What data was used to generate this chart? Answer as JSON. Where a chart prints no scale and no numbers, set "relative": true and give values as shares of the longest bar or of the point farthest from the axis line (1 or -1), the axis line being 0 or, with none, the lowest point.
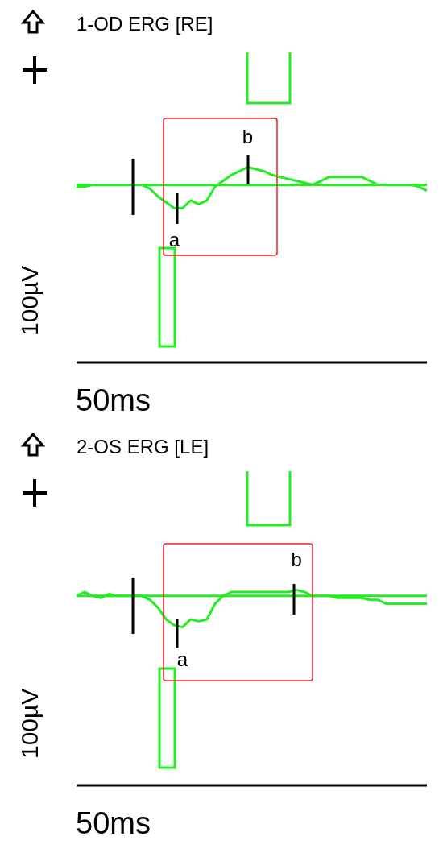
{
  "chart_data": [
    {
      "type": "line",
      "title": "1-OD ERG [RE]",
      "xlabel": "50ms",
      "ylabel": "100µV",
      "relative": true,
      "marker": "none",
      "line_style": "solid",
      "categories": [
        null,
        null,
        null,
        null,
        null,
        null,
        null,
        null,
        null,
        null,
        null,
        null,
        null,
        null,
        null,
        null,
        null,
        null,
        null,
        null,
        null,
        null,
        null,
        null,
        null,
        null,
        null,
        null,
        null,
        null,
        null,
        null,
        null,
        null,
        null,
        null,
        null,
        null,
        null,
        null,
        null,
        null,
        null,
        null
      ],
      "series": [
        {
          "color": "#22ee22",
          "values": [
            0.91,
            0.91,
            0.91,
            0.91,
            0.91,
            0.91,
            0.91,
            0.91,
            0.91,
            0.91,
            0.91,
            0.91,
            0.91,
            0.91,
            0.91,
            0.91,
            0.91,
            0.91,
            0.91,
            0.91,
            0.91,
            0.91,
            0.91,
            0.91,
            0.91,
            0.91,
            0.91,
            0.91,
            0.91,
            0.91,
            0.91,
            0.91,
            0.91,
            0.91,
            0.91,
            0.91,
            0.91,
            0.91,
            0.91,
            0.91,
            0.91,
            0.91,
            0.91,
            0.91
          ]
        },
        {
          "color": "#22ee22",
          "values": [
            0.9,
            0.9,
            0.91,
            0.91,
            0.91,
            0.91,
            0.91,
            0.91,
            0.91,
            0.89,
            0.85,
            0.82,
            0.79,
            0.79,
            0.83,
            0.81,
            0.83,
            0.9,
            0.93,
            0.96,
            0.98,
            1,
            0.99,
            0.98,
            0.96,
            0.95,
            0.94,
            0.93,
            0.92,
            0.91,
            0.93,
            0.95,
            0.95,
            0.95,
            0.95,
            0.95,
            0.93,
            0.91,
            0.91,
            0.91,
            0.91,
            0.91,
            0.9,
            0.88
          ]
        }
      ],
      "annotations": [
        "a",
        "b"
      ]
    },
    {
      "type": "line",
      "title": "2-OS ERG [LE]",
      "xlabel": "50ms",
      "ylabel": "100µV",
      "relative": true,
      "marker": "none",
      "line_style": "solid",
      "categories": [
        null,
        null,
        null,
        null,
        null,
        null,
        null,
        null,
        null,
        null,
        null,
        null,
        null,
        null,
        null,
        null,
        null,
        null,
        null,
        null,
        null,
        null,
        null,
        null,
        null,
        null,
        null,
        null,
        null,
        null,
        null,
        null,
        null,
        null,
        null,
        null,
        null,
        null,
        null,
        null,
        null,
        null,
        null,
        null
      ],
      "series": [
        {
          "color": "#22ee22",
          "values": [
            0.97,
            0.97,
            0.97,
            0.97,
            0.97,
            0.97,
            0.97,
            0.97,
            0.97,
            0.97,
            0.97,
            0.97,
            0.97,
            0.97,
            0.97,
            0.97,
            0.97,
            0.97,
            0.97,
            0.97,
            0.97,
            0.97,
            0.97,
            0.97,
            0.97,
            0.97,
            0.97,
            0.97,
            0.97,
            0.97,
            0.97,
            0.97,
            0.97,
            0.97,
            0.97,
            0.97,
            0.97,
            0.97,
            0.97,
            0.97,
            0.97,
            0.97,
            0.97,
            0.97
          ]
        },
        {
          "color": "#22ee22",
          "values": [
            0.97,
            0.99,
            0.97,
            0.96,
            0.98,
            0.97,
            0.97,
            0.97,
            0.97,
            0.95,
            0.91,
            0.85,
            0.82,
            0.81,
            0.85,
            0.84,
            0.85,
            0.93,
            0.97,
            0.99,
            0.99,
            0.99,
            0.99,
            0.99,
            0.99,
            0.99,
            0.99,
            1,
            0.99,
            0.97,
            0.97,
            0.97,
            0.96,
            0.96,
            0.96,
            0.96,
            0.95,
            0.95,
            0.93,
            0.93,
            0.93,
            0.93,
            0.93,
            0.93
          ]
        }
      ],
      "annotations": [
        "a",
        "b"
      ]
    }
  ]
}
